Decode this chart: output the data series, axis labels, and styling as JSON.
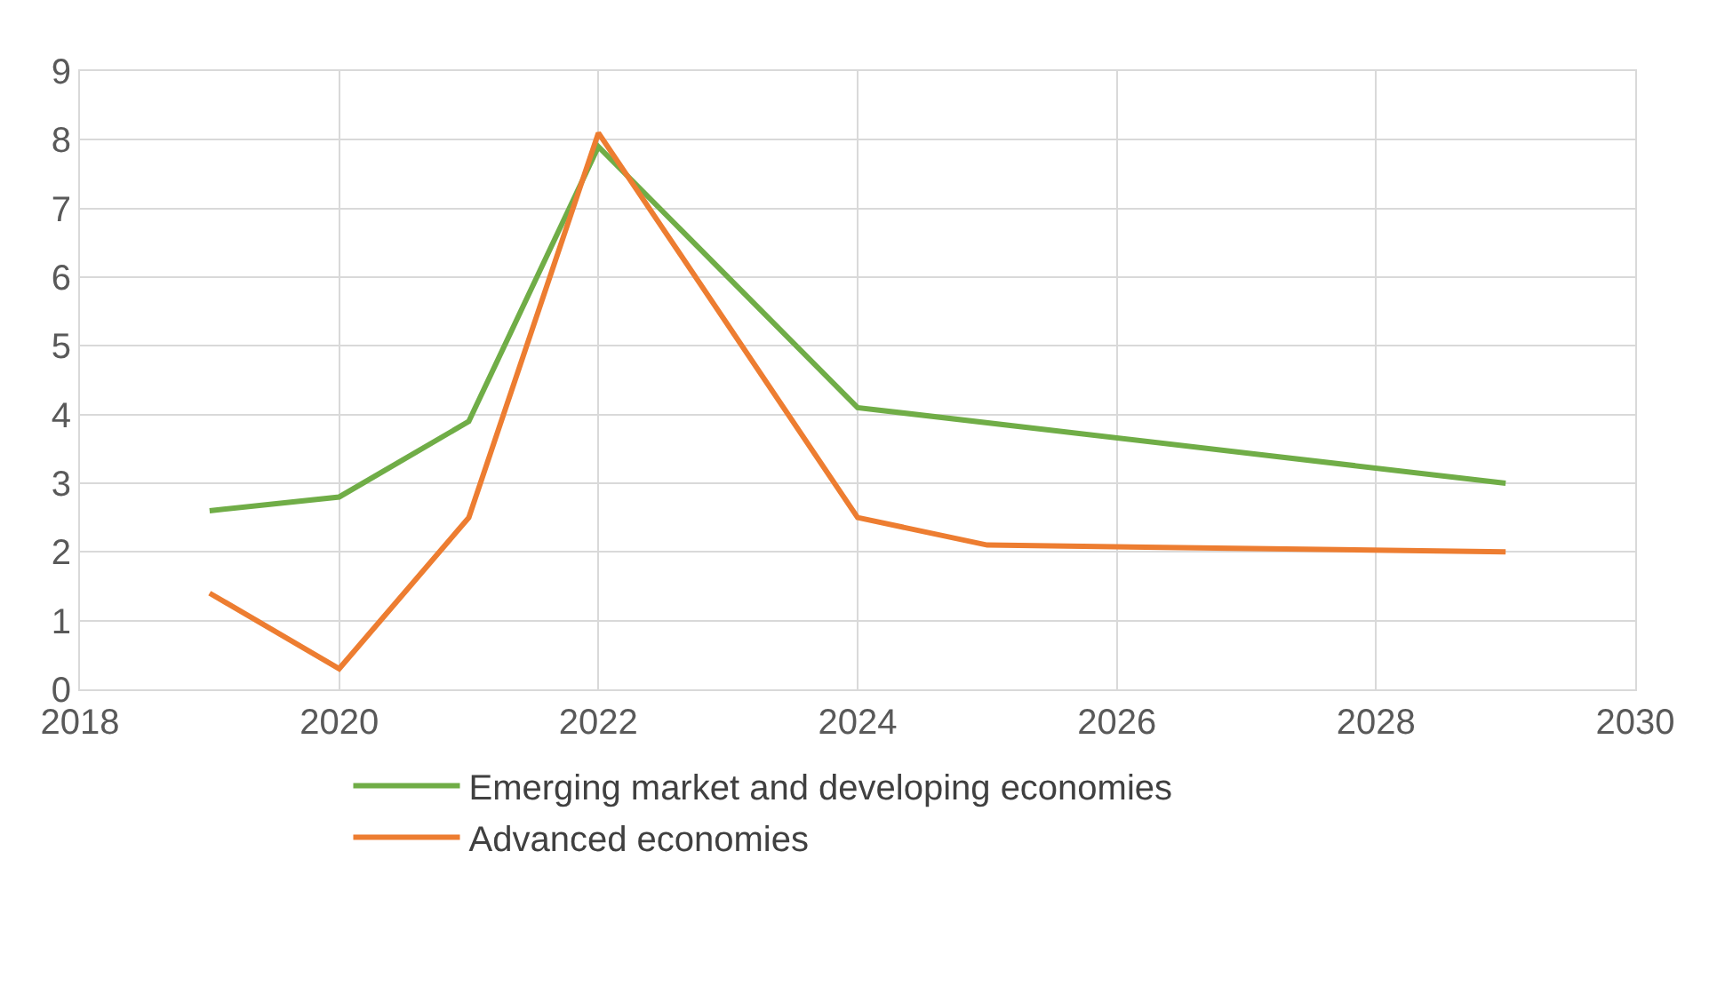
{
  "chart_data": {
    "type": "line",
    "x": [
      2019,
      2020,
      2021,
      2022,
      2024,
      2025,
      2029
    ],
    "series": [
      {
        "name": "Emerging market and developing economies",
        "color": "#70ad47",
        "values": [
          2.6,
          2.8,
          3.9,
          7.9,
          4.1,
          null,
          3.0
        ]
      },
      {
        "name": "Advanced economies",
        "color": "#ed7d31",
        "values": [
          1.4,
          0.3,
          2.5,
          8.1,
          2.5,
          2.1,
          2.0
        ]
      }
    ],
    "xlim": [
      2018,
      2030
    ],
    "xticks": [
      2018,
      2020,
      2022,
      2024,
      2026,
      2028,
      2030
    ],
    "ylim": [
      0,
      9
    ],
    "yticks": [
      0,
      1,
      2,
      3,
      4,
      5,
      6,
      7,
      8,
      9
    ],
    "grid": true,
    "legend": "bottom",
    "marker": "none",
    "line_style": "solid"
  }
}
